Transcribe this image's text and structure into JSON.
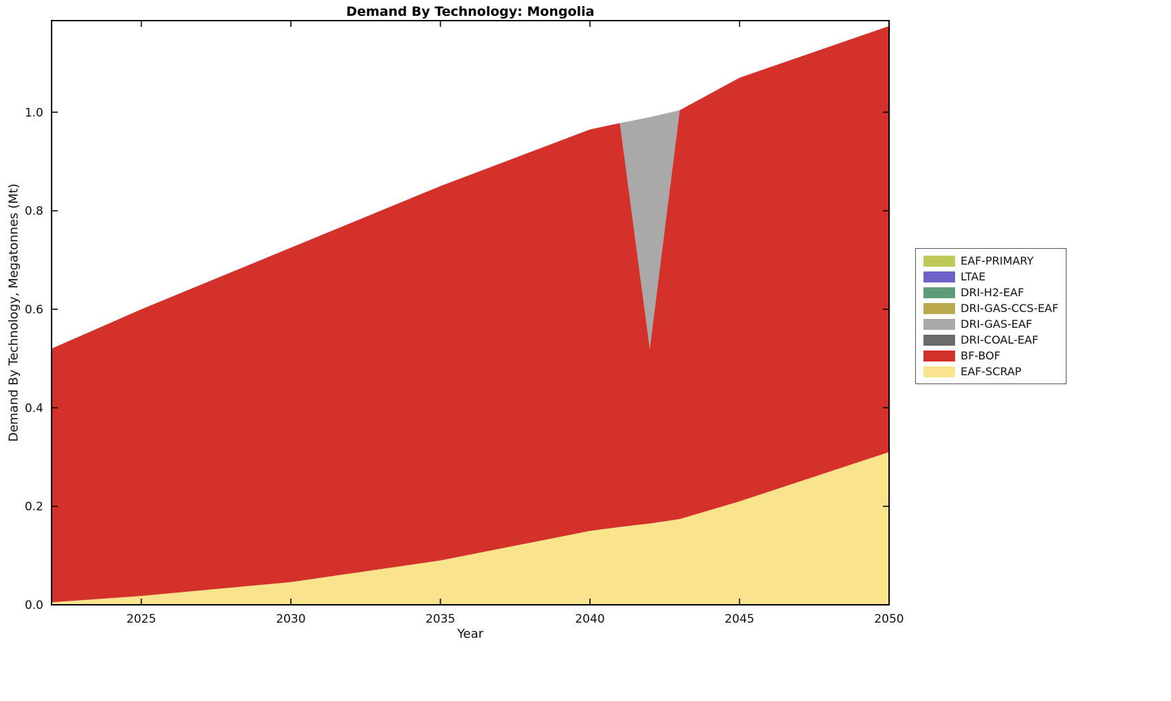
{
  "chart_data": {
    "type": "area",
    "stacked": true,
    "title": "Demand By Technology: Mongolia",
    "xlabel": "Year",
    "ylabel": "Demand By Technology, Megatonnes (Mt)",
    "xlim": [
      2022,
      2050
    ],
    "ylim": [
      0,
      1.186
    ],
    "xticks": [
      2025,
      2030,
      2035,
      2040,
      2045,
      2050
    ],
    "yticks": [
      0.0,
      0.2,
      0.4,
      0.6,
      0.8,
      1.0
    ],
    "grid": false,
    "legend_position": "right-outside",
    "x": [
      2022,
      2025,
      2030,
      2035,
      2040,
      2041,
      2042,
      2043,
      2045,
      2050
    ],
    "series": [
      {
        "name": "EAF-SCRAP",
        "color": "#f9e48b",
        "values": [
          0.005,
          0.018,
          0.046,
          0.09,
          0.15,
          0.158,
          0.165,
          0.174,
          0.21,
          0.31
        ]
      },
      {
        "name": "BF-BOF",
        "color": "#d3312a",
        "values": [
          0.515,
          0.582,
          0.679,
          0.76,
          0.815,
          0.82,
          0.355,
          0.83,
          0.86,
          0.865
        ]
      },
      {
        "name": "DRI-COAL-EAF",
        "color": "#6b6b6b",
        "values": [
          0,
          0,
          0,
          0,
          0,
          0,
          0,
          0,
          0,
          0
        ]
      },
      {
        "name": "DRI-GAS-EAF",
        "color": "#a9a9a9",
        "values": [
          0,
          0,
          0,
          0,
          0,
          0,
          0.47,
          0,
          0,
          0
        ]
      },
      {
        "name": "DRI-GAS-CCS-EAF",
        "color": "#b7a94c",
        "values": [
          0,
          0,
          0,
          0,
          0,
          0,
          0,
          0,
          0,
          0
        ]
      },
      {
        "name": "DRI-H2-EAF",
        "color": "#5e9c79",
        "values": [
          0,
          0,
          0,
          0,
          0,
          0,
          0,
          0,
          0,
          0
        ]
      },
      {
        "name": "LTAE",
        "color": "#6e61c8",
        "values": [
          0,
          0,
          0,
          0,
          0,
          0,
          0,
          0,
          0,
          0
        ]
      },
      {
        "name": "EAF-PRIMARY",
        "color": "#bdca57",
        "values": [
          0,
          0,
          0,
          0,
          0,
          0,
          0,
          0,
          0,
          0
        ]
      }
    ],
    "legend": [
      "EAF-PRIMARY",
      "LTAE",
      "DRI-H2-EAF",
      "DRI-GAS-CCS-EAF",
      "DRI-GAS-EAF",
      "DRI-COAL-EAF",
      "BF-BOF",
      "EAF-SCRAP"
    ]
  }
}
